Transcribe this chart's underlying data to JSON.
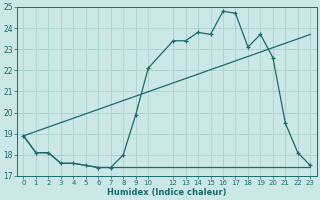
{
  "xlabel": "Humidex (Indice chaleur)",
  "bg_color": "#cce8e6",
  "grid_color": "#aacfcd",
  "line_color": "#1a6b6b",
  "xlim": [
    -0.5,
    23.5
  ],
  "ylim": [
    17,
    25
  ],
  "xtick_positions": [
    0,
    1,
    2,
    3,
    4,
    5,
    6,
    7,
    8,
    9,
    10,
    12,
    13,
    14,
    15,
    16,
    17,
    18,
    19,
    20,
    21,
    22,
    23
  ],
  "xtick_labels": [
    "0",
    "1",
    "2",
    "3",
    "4",
    "5",
    "6",
    "7",
    "8",
    "9",
    "10",
    "12",
    "13",
    "14",
    "15",
    "16",
    "17",
    "18",
    "19",
    "20",
    "21",
    "22",
    "23"
  ],
  "ytick_positions": [
    17,
    18,
    19,
    20,
    21,
    22,
    23,
    24,
    25
  ],
  "line1_x": [
    0,
    1,
    2,
    3,
    4,
    5,
    6,
    7,
    8,
    9,
    10,
    12,
    13,
    14,
    15,
    16,
    17,
    18,
    19,
    20,
    21,
    22,
    23
  ],
  "line1_y": [
    18.9,
    18.1,
    18.1,
    17.6,
    17.6,
    17.5,
    17.4,
    17.4,
    18.0,
    19.9,
    22.1,
    23.4,
    23.4,
    23.8,
    23.7,
    24.8,
    24.7,
    23.1,
    23.7,
    22.6,
    19.5,
    18.1,
    17.5
  ],
  "line2_x": [
    0,
    1,
    2,
    3,
    4,
    5,
    6,
    7,
    8,
    9,
    10,
    12,
    13,
    14,
    15,
    16,
    17,
    18,
    19,
    20,
    21,
    22,
    23
  ],
  "line2_y": [
    18.9,
    18.1,
    18.1,
    17.6,
    17.6,
    17.5,
    17.4,
    17.4,
    17.4,
    17.4,
    17.4,
    17.4,
    17.4,
    17.4,
    17.4,
    17.4,
    17.4,
    17.4,
    17.4,
    17.4,
    17.4,
    17.4,
    17.4
  ],
  "line3_x": [
    0,
    23
  ],
  "line3_y": [
    18.9,
    23.7
  ]
}
